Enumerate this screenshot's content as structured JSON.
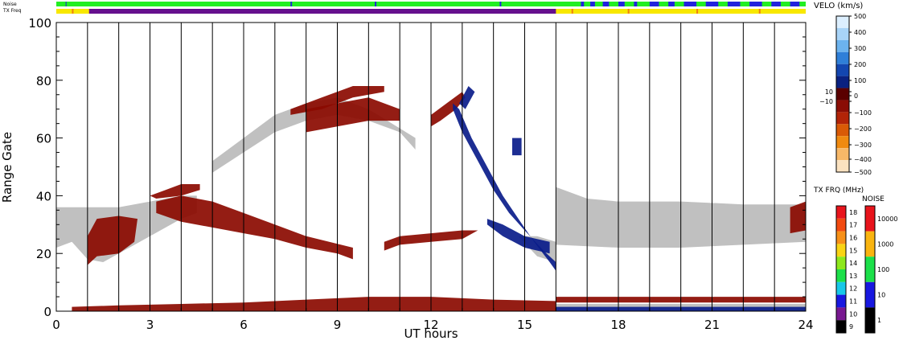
{
  "chart_data": {
    "type": "heatmap",
    "title": "",
    "xlabel": "UT hours",
    "ylabel": "Range Gate",
    "xlim": [
      0,
      24
    ],
    "ylim": [
      0,
      100
    ],
    "x_ticks": [
      0,
      3,
      6,
      9,
      12,
      15,
      18,
      21,
      24
    ],
    "y_ticks": [
      0,
      20,
      40,
      60,
      80,
      100
    ],
    "status_rows": [
      {
        "label": "Noise"
      },
      {
        "label": "TX Freq"
      }
    ],
    "velocity_scale": {
      "title": "VELO (km/s)",
      "labels": [
        "500",
        "400",
        "300",
        "200",
        "100",
        "10",
        "0",
        "−10",
        "−100",
        "−200",
        "−300",
        "−400",
        "−500"
      ],
      "colors": [
        "#dcefff",
        "#a8d4f8",
        "#6cb3ee",
        "#2f7fd8",
        "#1346b0",
        "#0a2180",
        "#5a0000",
        "#8a0d05",
        "#b22408",
        "#d95a06",
        "#f08a10",
        "#f7b868",
        "#fbe2c0"
      ]
    },
    "tx_freq_scale": {
      "title": "TX FRQ (MHz)",
      "labels": [
        "18",
        "17",
        "16",
        "15",
        "14",
        "13",
        "12",
        "11",
        "10",
        "9"
      ],
      "colors": [
        "#e8141c",
        "#f24a10",
        "#f79018",
        "#f9d414",
        "#8ee81c",
        "#1ce04a",
        "#18c8e8",
        "#1818e0",
        "#781890",
        "#000000"
      ]
    },
    "noise_scale": {
      "title": "NOISE",
      "labels": [
        "10000",
        "1000",
        "100",
        "10",
        "1"
      ],
      "colors": [
        "#e8141c",
        "#f9b410",
        "#1ce04a",
        "#1818e0",
        "#000000"
      ]
    },
    "colors": {
      "ground_scatter": "#c0c0c0",
      "negative_velocity": "#8b0a00",
      "positive_velocity": "#0a1c8a",
      "noise_bar": "#22ee22",
      "noise_bar_alt": "#2222dd",
      "tx_bar": "#f8e800",
      "tx_bar_alt": "#66108e"
    },
    "series": [
      {
        "kind": "ground",
        "points": [
          [
            0,
            22
          ],
          [
            0.5,
            24
          ],
          [
            1,
            18
          ],
          [
            1.5,
            17
          ],
          [
            2,
            20
          ],
          [
            3,
            26
          ],
          [
            4,
            32
          ],
          [
            4.5,
            34
          ],
          [
            4.5,
            40
          ],
          [
            4,
            40
          ],
          [
            3,
            38
          ],
          [
            2,
            36
          ],
          [
            1,
            36
          ],
          [
            0,
            36
          ]
        ]
      },
      {
        "kind": "ground",
        "points": [
          [
            16,
            23
          ],
          [
            18,
            22
          ],
          [
            20,
            22
          ],
          [
            22,
            23
          ],
          [
            24,
            24
          ],
          [
            24,
            37
          ],
          [
            22,
            37
          ],
          [
            20,
            38
          ],
          [
            18,
            38
          ],
          [
            17,
            39
          ],
          [
            16,
            43
          ]
        ]
      },
      {
        "kind": "ground",
        "points": [
          [
            16,
            0
          ],
          [
            24,
            0
          ],
          [
            24,
            2.5
          ],
          [
            16,
            2.5
          ]
        ]
      },
      {
        "kind": "ground",
        "points": [
          [
            5,
            48
          ],
          [
            6,
            55
          ],
          [
            7,
            62
          ],
          [
            8,
            66
          ],
          [
            9,
            68
          ],
          [
            10,
            66
          ],
          [
            11,
            62
          ],
          [
            11.5,
            56
          ],
          [
            11.5,
            60
          ],
          [
            10,
            70
          ],
          [
            9,
            74
          ],
          [
            8,
            72
          ],
          [
            7,
            68
          ],
          [
            6,
            60
          ],
          [
            5,
            52
          ]
        ]
      },
      {
        "kind": "ground",
        "points": [
          [
            14.8,
            26
          ],
          [
            15.4,
            19
          ],
          [
            16,
            17
          ],
          [
            16,
            24
          ],
          [
            15.4,
            26
          ]
        ]
      },
      {
        "kind": "negative",
        "points": [
          [
            1,
            16
          ],
          [
            1.3,
            19
          ],
          [
            2,
            20
          ],
          [
            2.5,
            24
          ],
          [
            2.6,
            32
          ],
          [
            2,
            33
          ],
          [
            1.3,
            32
          ],
          [
            1,
            26
          ]
        ]
      },
      {
        "kind": "negative",
        "points": [
          [
            3.2,
            34
          ],
          [
            4,
            31
          ],
          [
            5,
            29
          ],
          [
            6,
            27
          ],
          [
            7,
            25
          ],
          [
            8,
            22
          ],
          [
            9,
            20
          ],
          [
            9.5,
            18
          ],
          [
            9.5,
            22
          ],
          [
            8,
            26
          ],
          [
            7,
            30
          ],
          [
            6,
            34
          ],
          [
            5,
            38
          ],
          [
            4,
            40
          ],
          [
            3.2,
            38
          ]
        ]
      },
      {
        "kind": "negative",
        "points": [
          [
            10.5,
            21
          ],
          [
            11,
            23
          ],
          [
            12,
            24
          ],
          [
            13,
            25
          ],
          [
            13.5,
            28
          ],
          [
            13,
            28
          ],
          [
            12,
            27
          ],
          [
            11,
            26
          ],
          [
            10.5,
            24
          ]
        ]
      },
      {
        "kind": "negative",
        "points": [
          [
            3,
            40
          ],
          [
            3.5,
            42
          ],
          [
            4,
            44
          ],
          [
            4.6,
            44
          ],
          [
            4.6,
            42
          ],
          [
            4,
            40
          ],
          [
            3.2,
            39
          ]
        ]
      },
      {
        "kind": "negative",
        "points": [
          [
            0.5,
            0
          ],
          [
            16,
            0
          ],
          [
            16,
            3.5
          ],
          [
            14,
            4
          ],
          [
            12,
            5
          ],
          [
            10,
            5
          ],
          [
            8,
            4
          ],
          [
            6,
            3
          ],
          [
            4,
            2.5
          ],
          [
            2,
            2
          ],
          [
            0.5,
            1.5
          ]
        ]
      },
      {
        "kind": "negative",
        "points": [
          [
            23.5,
            27
          ],
          [
            24,
            28
          ],
          [
            24,
            38
          ],
          [
            23.5,
            36
          ]
        ]
      },
      {
        "kind": "negative",
        "points": [
          [
            8,
            62
          ],
          [
            9,
            64
          ],
          [
            10,
            66
          ],
          [
            11,
            66
          ],
          [
            11,
            70
          ],
          [
            10,
            74
          ],
          [
            9,
            72
          ],
          [
            8,
            70
          ]
        ]
      },
      {
        "kind": "negative",
        "points": [
          [
            7.5,
            70
          ],
          [
            8.5,
            74
          ],
          [
            9.5,
            78
          ],
          [
            10.5,
            78
          ],
          [
            10.5,
            76
          ],
          [
            9.5,
            74
          ],
          [
            8.5,
            70
          ],
          [
            7.5,
            68
          ]
        ]
      },
      {
        "kind": "negative",
        "points": [
          [
            12,
            68
          ],
          [
            12.5,
            72
          ],
          [
            13,
            76
          ],
          [
            13.1,
            74
          ],
          [
            12.8,
            70
          ],
          [
            12.3,
            66
          ],
          [
            12,
            64
          ]
        ]
      },
      {
        "kind": "negative",
        "points": [
          [
            16,
            3
          ],
          [
            24,
            3
          ],
          [
            24,
            5
          ],
          [
            16,
            5
          ]
        ]
      },
      {
        "kind": "positive",
        "points": [
          [
            12.7,
            72
          ],
          [
            12.9,
            70
          ],
          [
            13.3,
            60
          ],
          [
            13.8,
            50
          ],
          [
            14.3,
            40
          ],
          [
            14.8,
            32
          ],
          [
            15.3,
            24
          ],
          [
            15.8,
            17
          ],
          [
            16,
            14
          ],
          [
            16,
            17
          ],
          [
            15.6,
            21
          ],
          [
            15,
            28
          ],
          [
            14.5,
            34
          ],
          [
            14,
            42
          ],
          [
            13.5,
            52
          ],
          [
            13,
            62
          ],
          [
            12.7,
            70
          ]
        ]
      },
      {
        "kind": "positive",
        "points": [
          [
            13.8,
            30
          ],
          [
            14.3,
            26
          ],
          [
            15,
            22
          ],
          [
            15.8,
            20
          ],
          [
            15.8,
            24
          ],
          [
            15,
            26
          ],
          [
            14.3,
            30
          ],
          [
            13.8,
            32
          ]
        ]
      },
      {
        "kind": "positive",
        "points": [
          [
            13.2,
            78
          ],
          [
            13.4,
            76
          ],
          [
            13.1,
            70
          ],
          [
            12.9,
            72
          ]
        ]
      },
      {
        "kind": "positive",
        "points": [
          [
            14.6,
            54
          ],
          [
            14.9,
            54
          ],
          [
            14.9,
            60
          ],
          [
            14.6,
            60
          ]
        ]
      },
      {
        "kind": "positive",
        "points": [
          [
            16,
            0
          ],
          [
            24,
            0
          ],
          [
            24,
            1.5
          ],
          [
            16,
            1.5
          ]
        ]
      }
    ]
  }
}
